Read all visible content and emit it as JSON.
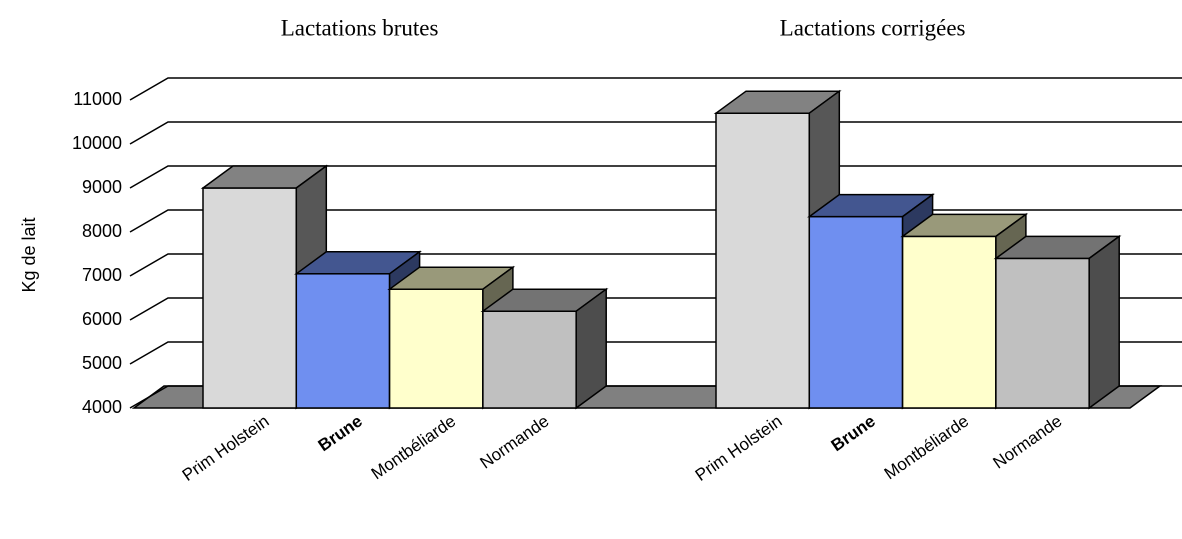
{
  "chart_data": {
    "type": "bar3d",
    "categories": [
      "Lactations brutes",
      "Lactations corrigées"
    ],
    "series": [
      {
        "name": "Prim Holstein",
        "color": "#d9d9d9",
        "values": [
          9000,
          10700
        ]
      },
      {
        "name": "Brune",
        "color": "#6f8ff0",
        "values": [
          7050,
          8350
        ]
      },
      {
        "name": "Montbéliarde",
        "color": "#ffffcc",
        "values": [
          6700,
          7900
        ]
      },
      {
        "name": "Normande",
        "color": "#c0c0c0",
        "values": [
          6200,
          7400
        ]
      }
    ],
    "y_label": "Kg de lait",
    "ylim": [
      4000,
      11000
    ],
    "yticks": [
      4000,
      5000,
      6000,
      7000,
      8000,
      9000,
      10000,
      11000
    ],
    "grid": true
  }
}
